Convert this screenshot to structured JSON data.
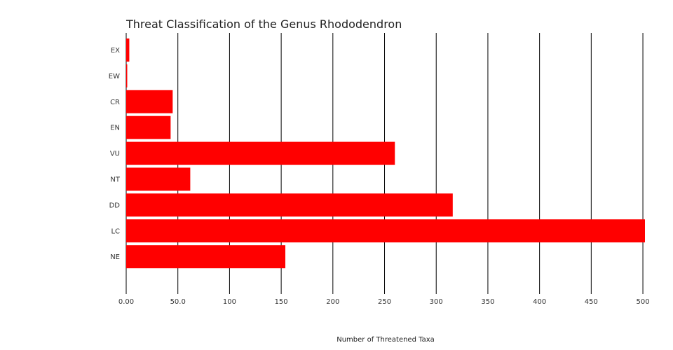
{
  "chart_data": {
    "type": "bar",
    "orientation": "horizontal",
    "title": "Threat Classification of the Genus Rhododendron",
    "xlabel": "Number of Threatened Taxa",
    "ylabel": "",
    "categories": [
      "EX",
      "EW",
      "CR",
      "EN",
      "VU",
      "NT",
      "DD",
      "LC",
      "NE"
    ],
    "values": [
      3,
      1,
      45,
      43,
      260,
      62,
      316,
      502,
      154
    ],
    "xlim": [
      0,
      502
    ],
    "xticks": [
      "0.00",
      "50.0",
      "100",
      "150",
      "200",
      "250",
      "300",
      "350",
      "400",
      "450",
      "500"
    ],
    "xtick_values": [
      0,
      50,
      100,
      150,
      200,
      250,
      300,
      350,
      400,
      450,
      500
    ],
    "grid": true,
    "legend": "none",
    "bar_color": "#ff0000",
    "grid_color": "#000000"
  }
}
